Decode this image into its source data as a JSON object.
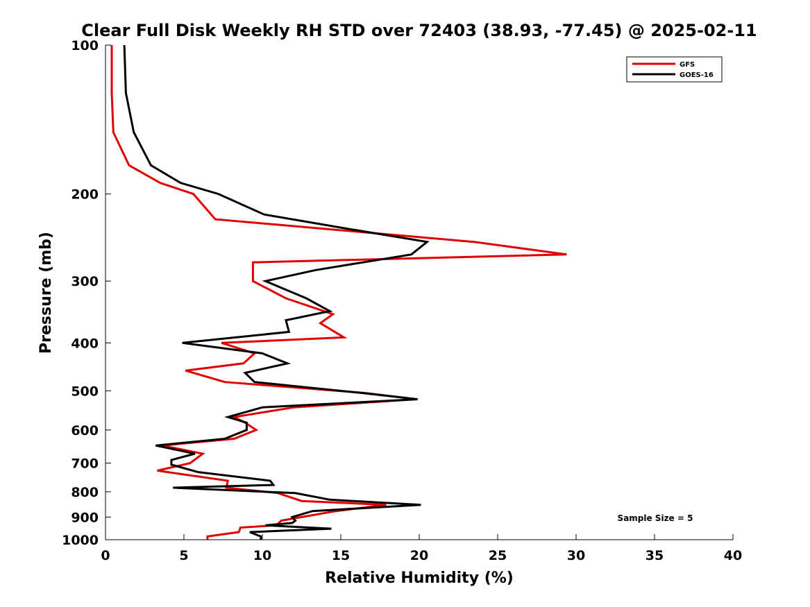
{
  "chart_data": {
    "type": "line",
    "title": "Clear Full Disk Weekly RH STD over 72403 (38.93, -77.45) @ 2025-02-11",
    "xlabel": "Relative Humidity (%)",
    "ylabel": "Pressure (mb)",
    "xlim": [
      0,
      40
    ],
    "ylim": [
      100,
      1000
    ],
    "y_scale": "log",
    "y_reversed": true,
    "x_ticks": [
      "0",
      "5",
      "10",
      "15",
      "20",
      "25",
      "30",
      "35",
      "40"
    ],
    "y_ticks": [
      "100",
      "200",
      "300",
      "400",
      "500",
      "600",
      "700",
      "800",
      "900",
      "1000"
    ],
    "legend_position": "top-right",
    "annotation": "Sample Size = 5",
    "series": [
      {
        "name": "GFS",
        "color": "#e00000",
        "points": [
          [
            0.4,
            100
          ],
          [
            0.4,
            125
          ],
          [
            0.5,
            150
          ],
          [
            1.5,
            175
          ],
          [
            3.5,
            190
          ],
          [
            5.6,
            200
          ],
          [
            7.0,
            225
          ],
          [
            23.5,
            250
          ],
          [
            29.4,
            265
          ],
          [
            9.4,
            275
          ],
          [
            9.4,
            300
          ],
          [
            11.5,
            325
          ],
          [
            14.5,
            350
          ],
          [
            13.7,
            365
          ],
          [
            15.2,
            390
          ],
          [
            7.4,
            400
          ],
          [
            9.5,
            420
          ],
          [
            8.8,
            440
          ],
          [
            5.1,
            455
          ],
          [
            7.6,
            480
          ],
          [
            16.5,
            505
          ],
          [
            19.8,
            520
          ],
          [
            12.0,
            540
          ],
          [
            8.2,
            565
          ],
          [
            8.9,
            580
          ],
          [
            9.6,
            600
          ],
          [
            8.2,
            625
          ],
          [
            3.6,
            645
          ],
          [
            6.2,
            670
          ],
          [
            5.4,
            700
          ],
          [
            3.3,
            725
          ],
          [
            7.8,
            760
          ],
          [
            7.7,
            785
          ],
          [
            11.0,
            805
          ],
          [
            12.5,
            835
          ],
          [
            17.9,
            850
          ],
          [
            14.7,
            875
          ],
          [
            12.5,
            900
          ],
          [
            11.2,
            915
          ],
          [
            10.9,
            935
          ],
          [
            8.6,
            945
          ],
          [
            8.5,
            965
          ],
          [
            6.5,
            985
          ],
          [
            6.5,
            1000
          ]
        ]
      },
      {
        "name": "GOES-16",
        "color": "#000000",
        "points": [
          [
            1.2,
            100
          ],
          [
            1.3,
            125
          ],
          [
            1.8,
            150
          ],
          [
            2.9,
            175
          ],
          [
            4.8,
            190
          ],
          [
            7.2,
            200
          ],
          [
            10.1,
            220
          ],
          [
            15.4,
            235
          ],
          [
            20.5,
            250
          ],
          [
            19.5,
            265
          ],
          [
            13.4,
            285
          ],
          [
            10.2,
            300
          ],
          [
            12.8,
            325
          ],
          [
            14.3,
            345
          ],
          [
            11.5,
            360
          ],
          [
            11.7,
            380
          ],
          [
            4.9,
            400
          ],
          [
            10.0,
            420
          ],
          [
            11.6,
            440
          ],
          [
            8.9,
            460
          ],
          [
            9.5,
            480
          ],
          [
            16.3,
            505
          ],
          [
            19.9,
            520
          ],
          [
            10.0,
            540
          ],
          [
            7.8,
            565
          ],
          [
            9.0,
            580
          ],
          [
            9.0,
            600
          ],
          [
            7.6,
            625
          ],
          [
            3.2,
            645
          ],
          [
            5.7,
            670
          ],
          [
            4.2,
            690
          ],
          [
            4.2,
            705
          ],
          [
            5.9,
            730
          ],
          [
            10.5,
            760
          ],
          [
            10.7,
            775
          ],
          [
            4.3,
            785
          ],
          [
            12.1,
            805
          ],
          [
            14.3,
            830
          ],
          [
            20.1,
            850
          ],
          [
            13.2,
            875
          ],
          [
            11.9,
            900
          ],
          [
            12.1,
            915
          ],
          [
            11.9,
            925
          ],
          [
            10.2,
            935
          ],
          [
            14.4,
            950
          ],
          [
            9.2,
            965
          ],
          [
            9.9,
            985
          ],
          [
            9.9,
            1000
          ]
        ]
      }
    ]
  }
}
